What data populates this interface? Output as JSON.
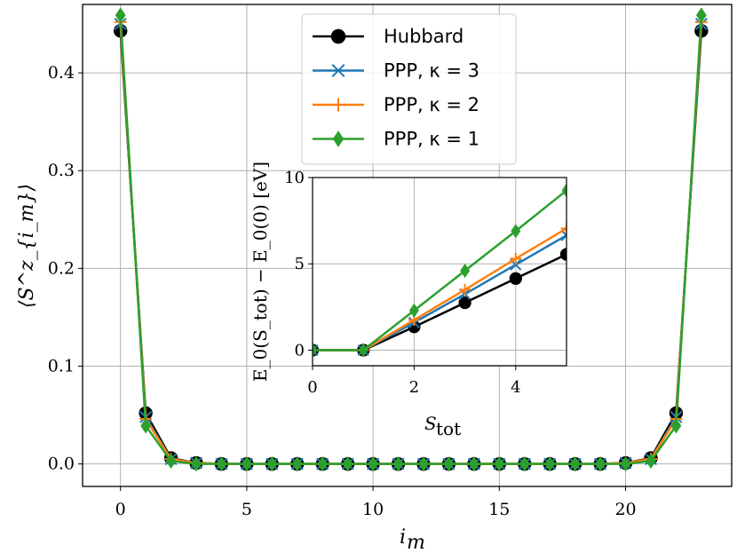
{
  "chart_data": [
    {
      "type": "line",
      "xlabel": "i_m",
      "ylabel": "⟨S^z_{i_m}⟩",
      "xlim": [
        -1.5,
        24.2
      ],
      "ylim": [
        -0.023,
        0.47
      ],
      "xticks": [
        0,
        5,
        10,
        15,
        20
      ],
      "yticks": [
        0.0,
        0.1,
        0.2,
        0.3,
        0.4
      ],
      "xtick_labels": [
        "0",
        "5",
        "10",
        "15",
        "20"
      ],
      "ytick_labels": [
        "0.0",
        "0.1",
        "0.2",
        "0.3",
        "0.4"
      ],
      "grid": true,
      "legend_position": "top-center",
      "x": [
        0,
        1,
        2,
        3,
        4,
        5,
        6,
        7,
        8,
        9,
        10,
        11,
        12,
        13,
        14,
        15,
        16,
        17,
        18,
        19,
        20,
        21,
        22,
        23
      ],
      "series": [
        {
          "name": "Hubbard",
          "label_text": "Hubbard",
          "color": "#000000",
          "marker": "circle",
          "values": [
            0.443,
            0.052,
            0.006,
            0.001,
            0.0,
            0.0,
            0.0,
            0.0,
            0.0,
            0.0,
            0.0,
            0.0,
            0.0,
            0.0,
            0.0,
            0.0,
            0.0,
            0.0,
            0.0,
            0.0,
            0.001,
            0.006,
            0.052,
            0.443
          ]
        },
        {
          "name": "PPP, κ = 3",
          "label_text": "PPP, κ = 3",
          "color": "#1f77b4",
          "marker": "x",
          "values": [
            0.45,
            0.048,
            0.005,
            0.001,
            0.0,
            0.0,
            0.0,
            0.0,
            0.0,
            0.0,
            0.0,
            0.0,
            0.0,
            0.0,
            0.0,
            0.0,
            0.0,
            0.0,
            0.0,
            0.0,
            0.001,
            0.005,
            0.048,
            0.45
          ]
        },
        {
          "name": "PPP, κ = 2",
          "label_text": "PPP, κ = 2",
          "color": "#ff7f0e",
          "marker": "plus",
          "values": [
            0.452,
            0.046,
            0.005,
            0.001,
            0.0,
            0.0,
            0.0,
            0.0,
            0.0,
            0.0,
            0.0,
            0.0,
            0.0,
            0.0,
            0.0,
            0.0,
            0.0,
            0.0,
            0.0,
            0.0,
            0.001,
            0.005,
            0.046,
            0.452
          ]
        },
        {
          "name": "PPP, κ = 1",
          "label_text": "PPP, κ = 1",
          "color": "#2ca02c",
          "marker": "diamond",
          "values": [
            0.459,
            0.039,
            0.003,
            0.0,
            0.0,
            0.0,
            0.0,
            0.0,
            0.0,
            0.0,
            0.0,
            0.0,
            0.0,
            0.0,
            0.0,
            0.0,
            0.0,
            0.0,
            0.0,
            0.0,
            0.0,
            0.003,
            0.039,
            0.459
          ]
        }
      ]
    },
    {
      "type": "line",
      "name": "inset",
      "xlabel": "S_tot",
      "ylabel": "E_0(S_tot) − E_0(0) [eV]",
      "xlim": [
        0,
        5
      ],
      "ylim": [
        -0.9,
        10
      ],
      "xticks": [
        0,
        2,
        4
      ],
      "yticks": [
        0,
        5,
        10
      ],
      "xtick_labels": [
        "0",
        "2",
        "4"
      ],
      "ytick_labels": [
        "0",
        "5",
        "10"
      ],
      "grid": true,
      "x": [
        0,
        1,
        2,
        3,
        4,
        5
      ],
      "series": [
        {
          "name": "Hubbard",
          "color": "#000000",
          "marker": "circle",
          "values": [
            0,
            0,
            1.35,
            2.75,
            4.15,
            5.55
          ]
        },
        {
          "name": "PPP, κ = 3",
          "color": "#1f77b4",
          "marker": "x",
          "values": [
            0,
            0,
            1.6,
            3.25,
            4.95,
            6.65
          ]
        },
        {
          "name": "PPP, κ = 2",
          "color": "#ff7f0e",
          "marker": "plus",
          "values": [
            0,
            0,
            1.75,
            3.5,
            5.3,
            7.05
          ]
        },
        {
          "name": "PPP, κ = 1",
          "color": "#2ca02c",
          "marker": "diamond",
          "values": [
            0,
            0,
            2.3,
            4.6,
            6.9,
            9.25
          ]
        }
      ]
    }
  ]
}
